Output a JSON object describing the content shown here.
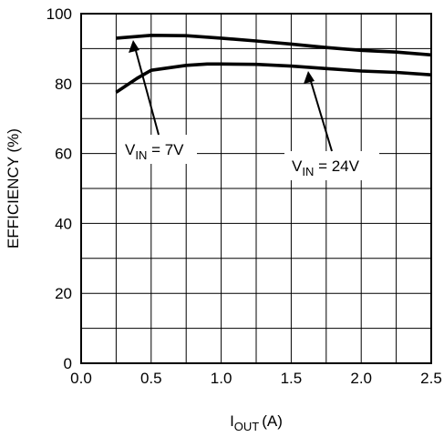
{
  "chart_data": {
    "type": "line",
    "xlabel": {
      "main": "I",
      "sub": "OUT",
      "unit": "(A)"
    },
    "ylabel": "EFFICIENCY (%)",
    "xlim": [
      0,
      2.5
    ],
    "ylim": [
      0,
      100
    ],
    "x_ticks": [
      "0.0",
      "0.5",
      "1.0",
      "1.5",
      "2.0",
      "2.5"
    ],
    "y_ticks": [
      "0",
      "20",
      "40",
      "60",
      "80",
      "100"
    ],
    "grid": true,
    "series": [
      {
        "name": "VIN = 7V",
        "x": [
          0.25,
          0.5,
          0.75,
          1.0,
          1.25,
          1.5,
          1.75,
          2.0,
          2.25,
          2.5
        ],
        "y": [
          93,
          93.8,
          93.7,
          93,
          92.2,
          91.3,
          90.3,
          89.5,
          89,
          88.2
        ]
      },
      {
        "name": "VIN = 24V",
        "x": [
          0.25,
          0.4,
          0.5,
          0.75,
          0.9,
          1.0,
          1.25,
          1.5,
          1.75,
          2.0,
          2.25,
          2.5
        ],
        "y": [
          77.5,
          81.5,
          83.8,
          85.2,
          85.6,
          85.6,
          85.5,
          85,
          84.3,
          83.6,
          83.2,
          82.5
        ]
      }
    ],
    "annotations": [
      {
        "main": "V",
        "sub": "IN",
        "value": " = 7V",
        "series": 0
      },
      {
        "main": "V",
        "sub": "IN",
        "value": " = 24V",
        "series": 1
      }
    ]
  }
}
